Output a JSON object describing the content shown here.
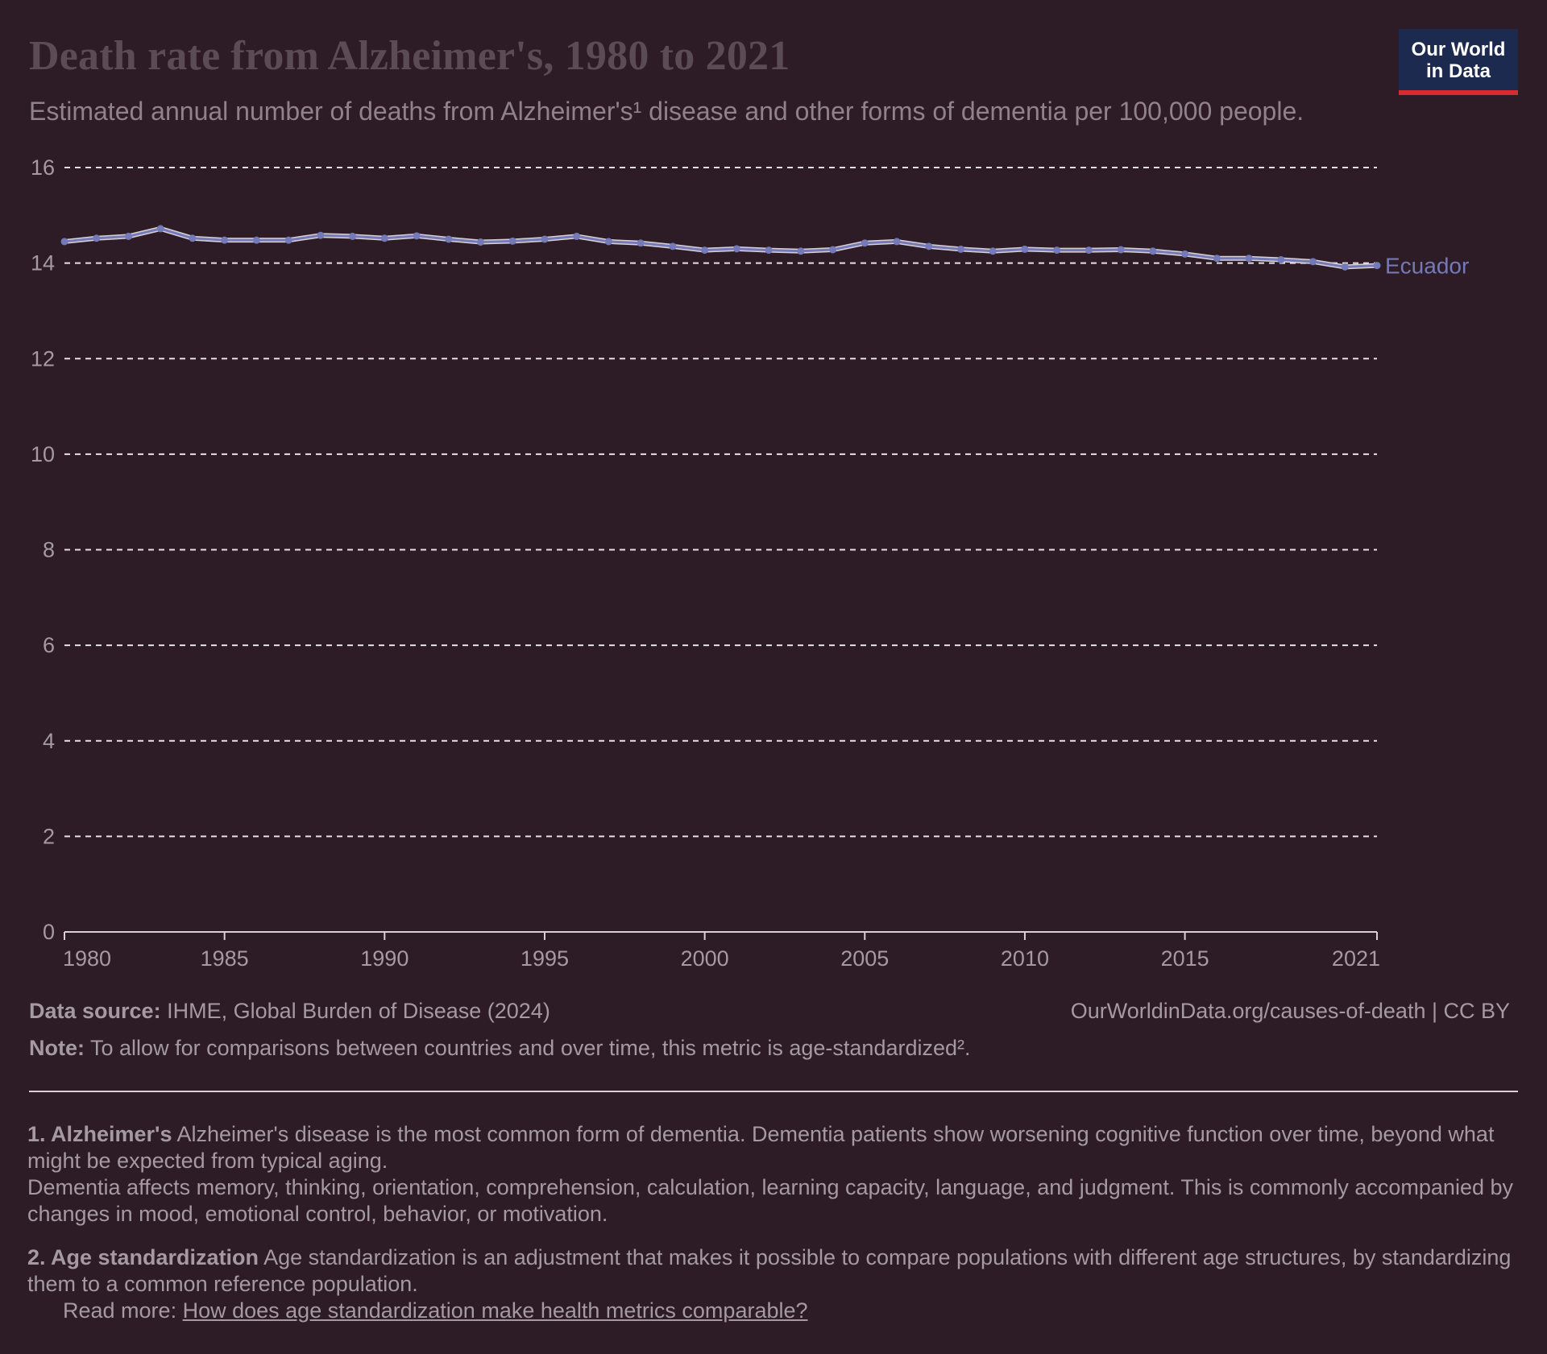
{
  "header": {
    "title": "Death rate from Alzheimer's, 1980 to 2021",
    "subtitle": "Estimated annual number of deaths from Alzheimer's¹ disease and other forms of dementia per 100,000 people."
  },
  "logo": {
    "line1": "Our World",
    "line2": "in Data"
  },
  "chart_data": {
    "type": "line",
    "title": "Death rate from Alzheimer's, 1980 to 2021",
    "xlabel": "",
    "ylabel": "",
    "x": [
      1980,
      1981,
      1982,
      1983,
      1984,
      1985,
      1986,
      1987,
      1988,
      1989,
      1990,
      1991,
      1992,
      1993,
      1994,
      1995,
      1996,
      1997,
      1998,
      1999,
      2000,
      2001,
      2002,
      2003,
      2004,
      2005,
      2006,
      2007,
      2008,
      2009,
      2010,
      2011,
      2012,
      2013,
      2014,
      2015,
      2016,
      2017,
      2018,
      2019,
      2020,
      2021
    ],
    "series": [
      {
        "name": "Ecuador",
        "color": "#7479b8",
        "values": [
          14.45,
          14.52,
          14.56,
          14.72,
          14.52,
          14.48,
          14.48,
          14.48,
          14.58,
          14.56,
          14.52,
          14.57,
          14.5,
          14.44,
          14.46,
          14.5,
          14.56,
          14.45,
          14.42,
          14.35,
          14.27,
          14.3,
          14.27,
          14.25,
          14.28,
          14.42,
          14.45,
          14.35,
          14.29,
          14.25,
          14.29,
          14.27,
          14.27,
          14.28,
          14.25,
          14.19,
          14.1,
          14.1,
          14.07,
          14.03,
          13.92,
          13.95
        ]
      }
    ],
    "ylim": [
      0,
      16
    ],
    "xlim": [
      1980,
      2021
    ],
    "yticks": [
      0,
      2,
      4,
      6,
      8,
      10,
      12,
      14,
      16
    ],
    "xtick_labels": [
      "1980",
      "1985",
      "1990",
      "1995",
      "2000",
      "2005",
      "2010",
      "2015",
      "2021"
    ],
    "grid": "horizontal dashed",
    "legend": "inline-right"
  },
  "footer": {
    "source_label": "Data source:",
    "source_text": "IHME, Global Burden of Disease (2024)",
    "url_text": "OurWorldinData.org/causes-of-death | CC BY",
    "note_label": "Note:",
    "note_text": "To allow for comparisons between countries and over time, this metric is age-standardized²."
  },
  "notes": {
    "n1_label": "1. Alzheimer's",
    "n1_text_a": "Alzheimer's disease is the most common form of dementia. Dementia patients show worsening cognitive function over time, beyond what might be expected from typical aging.",
    "n1_text_b": "Dementia affects memory, thinking, orientation, comprehension, calculation, learning capacity, language, and judgment. This is commonly accompanied by changes in mood, emotional control, behavior, or motivation.",
    "n2_label": "2. Age standardization",
    "n2_text": "Age standardization is an adjustment that makes it possible to compare populations with different age structures, by standardizing them to a common reference population.",
    "read_more_label": "Read more:",
    "read_more_link": "How does age standardization make health metrics comparable?"
  },
  "colors": {
    "background": "#2d1b26",
    "series": "#7479b8",
    "logo_bg": "#1d2a4f",
    "logo_accent": "#d42b35"
  }
}
